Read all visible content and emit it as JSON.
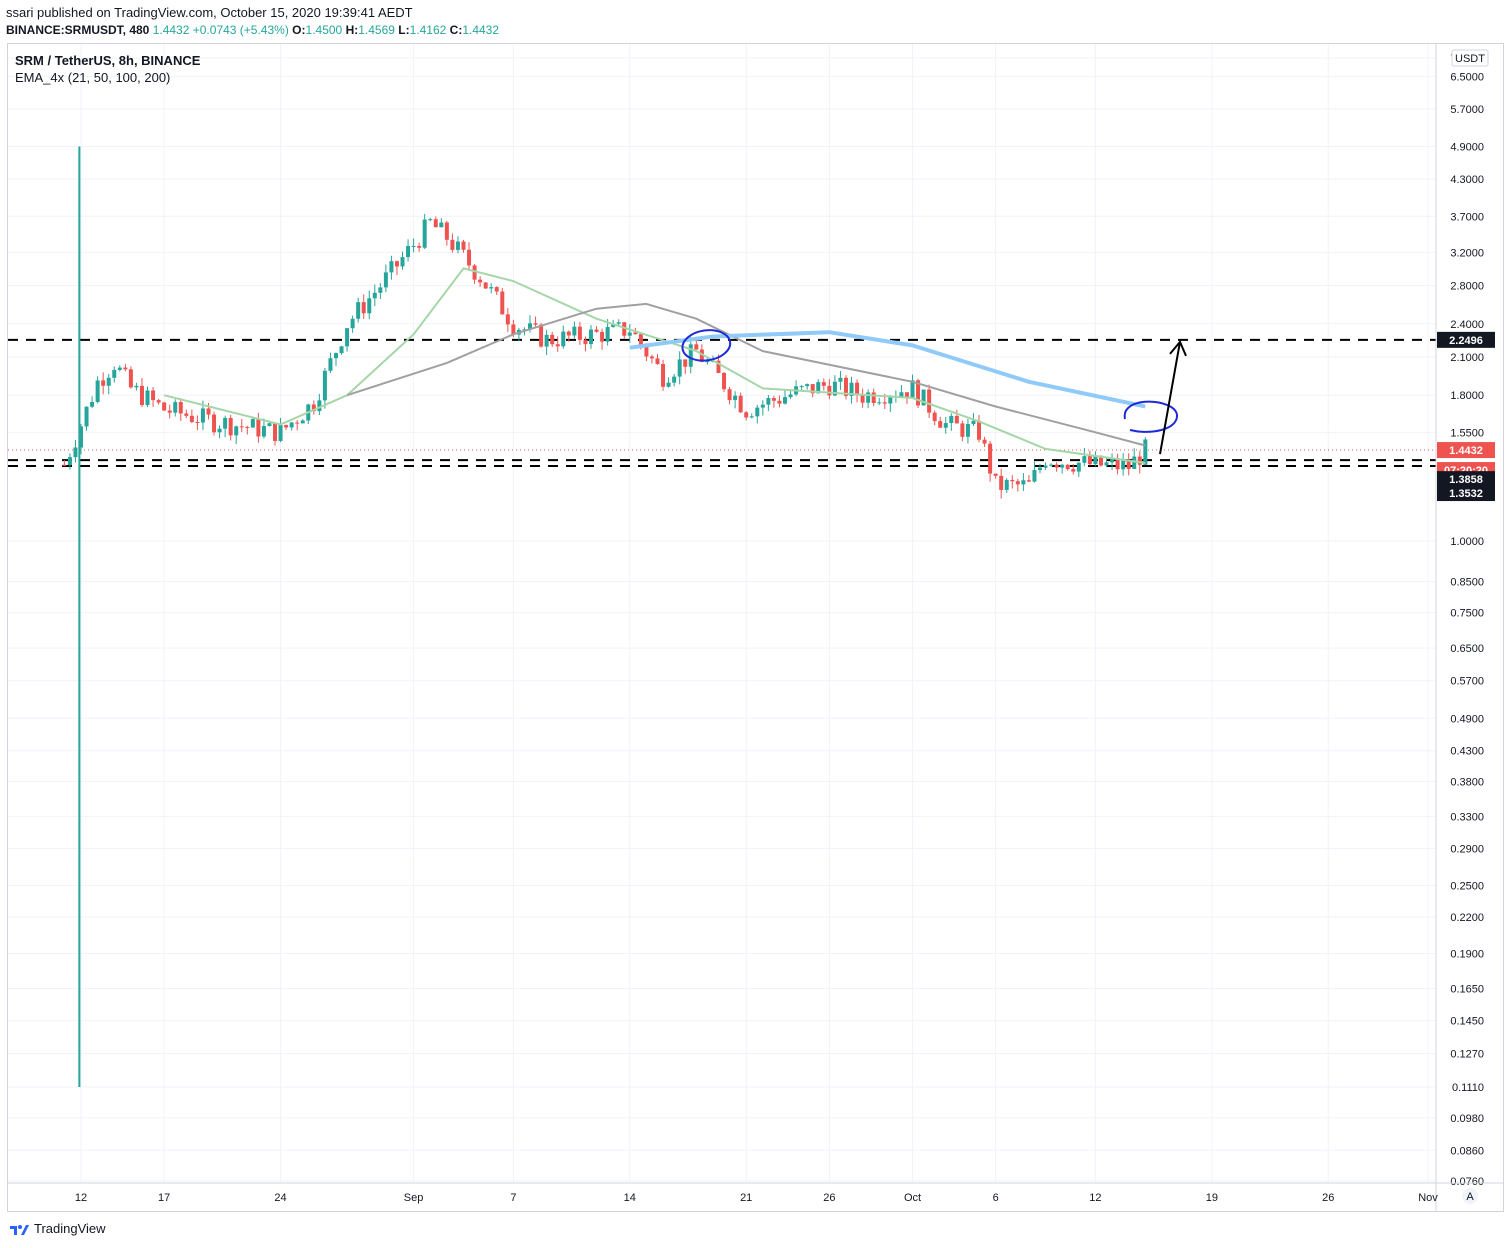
{
  "header": {
    "published": "ssari published on TradingView.com, October 15, 2020 19:39:41 AEDT",
    "symbol": "BINANCE:SRMUSDT, 480",
    "last": "1.4432",
    "change": "+0.0743 (+5.43%)",
    "o_label": "O:",
    "o": "1.4500",
    "h_label": "H:",
    "h": "1.4569",
    "l_label": "L:",
    "l": "1.4162",
    "c_label": "C:",
    "c": "1.4432"
  },
  "legend": {
    "title": "SRM / TetherUS, 8h, BINANCE",
    "indicator": "EMA_4x (21, 50, 100, 200)"
  },
  "currency": "USDT",
  "footer_logo": "TradingView",
  "price_tags": {
    "current": "1.4432",
    "countdown": "07:20:20",
    "level_high": "2.2496",
    "level_mid": "1.3858",
    "level_low": "1.3532"
  },
  "colors": {
    "up": "#26a69a",
    "down": "#ef5350",
    "ema21": "#a5d6a7",
    "ema50": "#a0a0a0",
    "drawn_line": "#90caf9",
    "circle": "#1e2bd6",
    "arrow": "#000000",
    "grid": "#f0f3fa"
  },
  "chart_data": {
    "type": "candlestick",
    "scale": "log",
    "ylim": [
      0.076,
      7.0
    ],
    "y_ticks": [
      "7.0000",
      "6.5000",
      "5.7000",
      "4.9000",
      "4.3000",
      "3.7000",
      "3.2000",
      "2.8000",
      "2.4000",
      "2.1000",
      "1.8000",
      "1.5500",
      "1.0000",
      "0.8500",
      "0.7500",
      "0.6500",
      "0.5700",
      "0.4900",
      "0.4300",
      "0.3800",
      "0.3300",
      "0.2900",
      "0.2500",
      "0.2200",
      "0.1900",
      "0.1650",
      "0.1450",
      "0.1270",
      "0.1110",
      "0.0980",
      "0.0860",
      "0.0760"
    ],
    "x_ticks": [
      "12",
      "17",
      "24",
      "Sep",
      "7",
      "14",
      "21",
      "26",
      "Oct",
      "6",
      "12",
      "19",
      "26",
      "Nov"
    ],
    "horizontal_levels": [
      2.2496,
      1.3858,
      1.3532
    ],
    "current_price": 1.4432,
    "listing_spike": {
      "date": "Aug 11",
      "high": 4.9,
      "low": 0.111
    },
    "price_path": [
      {
        "date": "Aug 11",
        "price": 1.36
      },
      {
        "date": "Aug 12",
        "price": 1.6
      },
      {
        "date": "Aug 13",
        "price": 1.9
      },
      {
        "date": "Aug 14",
        "price": 2.05
      },
      {
        "date": "Aug 15",
        "price": 1.85
      },
      {
        "date": "Aug 17",
        "price": 1.7
      },
      {
        "date": "Aug 20",
        "price": 1.62
      },
      {
        "date": "Aug 24",
        "price": 1.55
      },
      {
        "date": "Aug 26",
        "price": 1.75
      },
      {
        "date": "Aug 28",
        "price": 2.4
      },
      {
        "date": "Aug 30",
        "price": 2.8
      },
      {
        "date": "Sep 1",
        "price": 3.3
      },
      {
        "date": "Sep 2",
        "price": 3.6
      },
      {
        "date": "Sep 3",
        "price": 3.4
      },
      {
        "date": "Sep 5",
        "price": 2.9
      },
      {
        "date": "Sep 7",
        "price": 2.4
      },
      {
        "date": "Sep 9",
        "price": 2.25
      },
      {
        "date": "Sep 12",
        "price": 2.3
      },
      {
        "date": "Sep 14",
        "price": 2.35
      },
      {
        "date": "Sep 16",
        "price": 1.95
      },
      {
        "date": "Sep 18",
        "price": 2.15
      },
      {
        "date": "Sep 21",
        "price": 1.7
      },
      {
        "date": "Sep 24",
        "price": 1.82
      },
      {
        "date": "Sep 26",
        "price": 1.88
      },
      {
        "date": "Sep 28",
        "price": 1.8
      },
      {
        "date": "Oct 1",
        "price": 1.85
      },
      {
        "date": "Oct 3",
        "price": 1.6
      },
      {
        "date": "Oct 5",
        "price": 1.55
      },
      {
        "date": "Oct 6",
        "price": 1.25
      },
      {
        "date": "Oct 8",
        "price": 1.25
      },
      {
        "date": "Oct 9",
        "price": 1.4
      },
      {
        "date": "Oct 10",
        "price": 1.38
      },
      {
        "date": "Oct 12",
        "price": 1.36
      },
      {
        "date": "Oct 14",
        "price": 1.35
      },
      {
        "date": "Oct 15",
        "price": 1.4432
      }
    ],
    "ema21": [
      {
        "date": "Aug 17",
        "price": 1.8
      },
      {
        "date": "Aug 24",
        "price": 1.6
      },
      {
        "date": "Aug 28",
        "price": 1.8
      },
      {
        "date": "Sep 1",
        "price": 2.3
      },
      {
        "date": "Sep 4",
        "price": 3.0
      },
      {
        "date": "Sep 7",
        "price": 2.85
      },
      {
        "date": "Sep 12",
        "price": 2.45
      },
      {
        "date": "Sep 18",
        "price": 2.15
      },
      {
        "date": "Sep 22",
        "price": 1.85
      },
      {
        "date": "Oct 1",
        "price": 1.78
      },
      {
        "date": "Oct 5",
        "price": 1.62
      },
      {
        "date": "Oct 9",
        "price": 1.45
      },
      {
        "date": "Oct 15",
        "price": 1.37
      }
    ],
    "ema50": [
      {
        "date": "Aug 28",
        "price": 1.8
      },
      {
        "date": "Sep 3",
        "price": 2.05
      },
      {
        "date": "Sep 7",
        "price": 2.3
      },
      {
        "date": "Sep 12",
        "price": 2.55
      },
      {
        "date": "Sep 15",
        "price": 2.6
      },
      {
        "date": "Sep 18",
        "price": 2.45
      },
      {
        "date": "Sep 22",
        "price": 2.15
      },
      {
        "date": "Oct 1",
        "price": 1.9
      },
      {
        "date": "Oct 6",
        "price": 1.72
      },
      {
        "date": "Oct 12",
        "price": 1.55
      },
      {
        "date": "Oct 15",
        "price": 1.47
      }
    ],
    "drawn_curve": [
      {
        "date": "Sep 14",
        "price": 2.18
      },
      {
        "date": "Sep 19",
        "price": 2.28
      },
      {
        "date": "Sep 26",
        "price": 2.32
      },
      {
        "date": "Oct 1",
        "price": 2.2
      },
      {
        "date": "Oct 8",
        "price": 1.9
      },
      {
        "date": "Oct 15",
        "price": 1.72
      }
    ]
  }
}
